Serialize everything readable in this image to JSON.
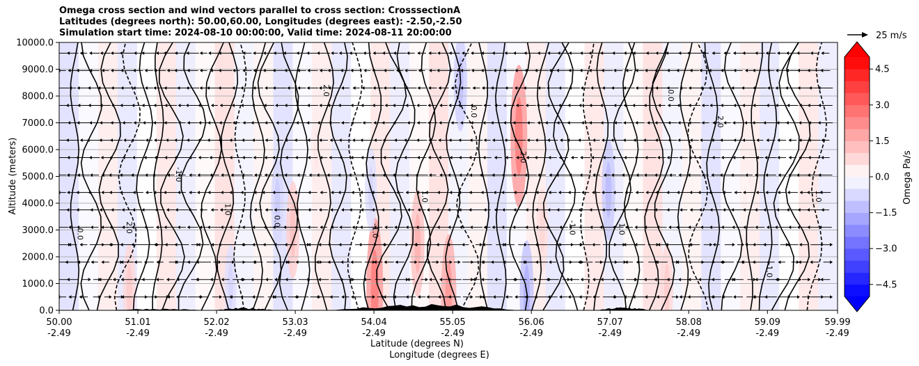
{
  "chart_data": {
    "type": "heatmap",
    "title_lines": [
      "Omega cross section and wind vectors parallel to cross section: CrosssectionA",
      "Latitudes (degrees north): 50.00,60.00, Longitudes (degrees east): -2.50,-2.50",
      "Simulation start time: 2024-08-10 00:00:00, Valid time: 2024-08-11 20:00:00"
    ],
    "ylabel": "Altitude (meters)",
    "xlabel_lat": "Latitude (degrees N)",
    "xlabel_lon": "Longitude (degrees E)",
    "ylim": [
      0,
      10000
    ],
    "yticks": [
      "0.0",
      "1000.0",
      "2000.0",
      "3000.0",
      "4000.0",
      "5000.0",
      "6000.0",
      "7000.0",
      "8000.0",
      "9000.0",
      "10000.0"
    ],
    "xlim": [
      50.0,
      59.99
    ],
    "xticks": [
      {
        "lat": "50.00",
        "lon": "-2.49"
      },
      {
        "lat": "51.01",
        "lon": "-2.49"
      },
      {
        "lat": "52.02",
        "lon": "-2.49"
      },
      {
        "lat": "53.03",
        "lon": "-2.49"
      },
      {
        "lat": "54.04",
        "lon": "-2.49"
      },
      {
        "lat": "55.05",
        "lon": "-2.49"
      },
      {
        "lat": "56.06",
        "lon": "-2.49"
      },
      {
        "lat": "57.07",
        "lon": "-2.49"
      },
      {
        "lat": "58.08",
        "lon": "-2.49"
      },
      {
        "lat": "59.09",
        "lon": "-2.49"
      },
      {
        "lat": "59.99",
        "lon": "-2.49"
      }
    ],
    "colorbar": {
      "label": "Omega Pa/s",
      "range": [
        -5.0,
        5.0
      ],
      "ticks": [
        "4.5",
        "3.0",
        "1.5",
        "0.0",
        "−1.5",
        "−3.0",
        "−4.5"
      ],
      "tick_values": [
        4.5,
        3.0,
        1.5,
        0.0,
        -1.5,
        -3.0,
        -4.5
      ]
    },
    "vector_key": {
      "label": "25 m/s"
    },
    "contour_labels": [
      "0.0",
      "1.0",
      "-1.0",
      "2.0"
    ],
    "colors": {
      "strong_positive": "#ff0000",
      "zero": "#ffffff",
      "strong_negative": "#0000ff",
      "contour": "#000000",
      "grid": "#b0b0b0"
    },
    "omega_features": [
      {
        "lat": 50.9,
        "alt": 800,
        "value": 1.0
      },
      {
        "lat": 52.2,
        "alt": 900,
        "value": -0.8
      },
      {
        "lat": 52.8,
        "alt": 4000,
        "value": -1.0
      },
      {
        "lat": 53.0,
        "alt": 3000,
        "value": 1.2
      },
      {
        "lat": 53.3,
        "alt": 6000,
        "value": 0.5
      },
      {
        "lat": 54.05,
        "alt": 800,
        "value": 2.5
      },
      {
        "lat": 54.0,
        "alt": 4500,
        "value": -0.8
      },
      {
        "lat": 54.6,
        "alt": 2500,
        "value": 1.5
      },
      {
        "lat": 55.0,
        "alt": 500,
        "value": 2.0
      },
      {
        "lat": 55.15,
        "alt": 8500,
        "value": -1.2
      },
      {
        "lat": 55.9,
        "alt": 6500,
        "value": 2.5
      },
      {
        "lat": 56.0,
        "alt": 600,
        "value": -1.5
      },
      {
        "lat": 56.2,
        "alt": 3000,
        "value": 0.8
      },
      {
        "lat": 57.05,
        "alt": 4500,
        "value": -1.3
      },
      {
        "lat": 57.8,
        "alt": 800,
        "value": 1.0
      },
      {
        "lat": 58.8,
        "alt": 4000,
        "value": 0.3
      }
    ]
  }
}
